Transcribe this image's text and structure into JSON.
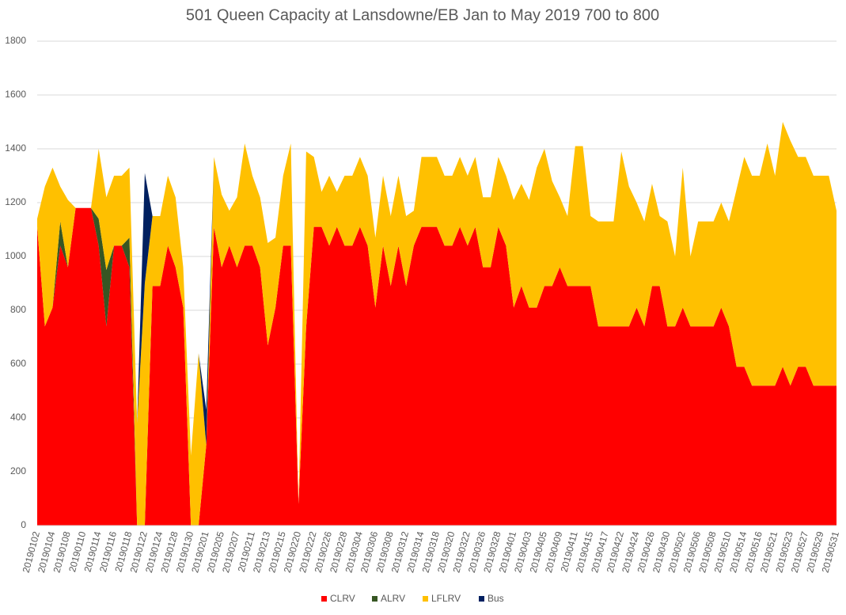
{
  "chart_data": {
    "type": "stacked_area",
    "title": "501 Queen Capacity at Lansdowne/EB Jan to May 2019 700 to 800",
    "categories": [
      "20190102",
      null,
      "20190104",
      null,
      "20190108",
      null,
      "20190110",
      null,
      "20190114",
      null,
      "20190116",
      null,
      "20190118",
      null,
      "20190122",
      null,
      "20190124",
      null,
      "20190128",
      null,
      "20190130",
      null,
      "20190201",
      null,
      "20190205",
      null,
      "20190207",
      null,
      "20190211",
      null,
      "20190213",
      null,
      "20190215",
      null,
      "20190220",
      null,
      "20190222",
      null,
      "20190226",
      null,
      "20190228",
      null,
      "20190304",
      null,
      "20190306",
      null,
      "20190308",
      null,
      "20190312",
      null,
      "20190314",
      null,
      "20190318",
      null,
      "20190320",
      null,
      "20190322",
      null,
      "20190326",
      null,
      "20190328",
      null,
      "20190401",
      null,
      "20190403",
      null,
      "20190405",
      null,
      "20190409",
      null,
      "20190411",
      null,
      "20190415",
      null,
      "20190417",
      null,
      "20190422",
      null,
      "20190424",
      null,
      "20190426",
      null,
      "20190430",
      null,
      "20190502",
      null,
      "20190506",
      null,
      "20190508",
      null,
      "20190510",
      null,
      "20190514",
      null,
      "20190516",
      null,
      "20190521",
      null,
      "20190523",
      null,
      "20190527",
      null,
      "20190529",
      null,
      "20190531"
    ],
    "series": [
      {
        "name": "CLRV",
        "color": "#ff0000",
        "values": [
          1110,
          740,
          810,
          1040,
          960,
          1180,
          1180,
          1180,
          1040,
          740,
          1040,
          1040,
          960,
          0,
          0,
          890,
          890,
          1040,
          960,
          810,
          0,
          0,
          300,
          1110,
          960,
          1040,
          960,
          1040,
          1040,
          960,
          670,
          810,
          1040,
          1040,
          80,
          740,
          1110,
          1110,
          1040,
          1110,
          1040,
          1040,
          1110,
          1040,
          810,
          1040,
          890,
          1040,
          890,
          1040,
          1110,
          1110,
          1110,
          1040,
          1040,
          1110,
          1040,
          1110,
          960,
          960,
          1110,
          1040,
          810,
          890,
          810,
          810,
          890,
          890,
          960,
          890,
          890,
          890,
          890,
          740,
          740,
          740,
          740,
          740,
          810,
          740,
          890,
          890,
          740,
          740,
          810,
          740,
          740,
          740,
          740,
          810,
          740,
          590,
          590,
          520,
          520,
          520,
          520,
          590,
          520,
          590,
          590,
          520,
          520,
          520,
          520
        ]
      },
      {
        "name": "ALRV",
        "color": "#375623",
        "values": [
          0,
          0,
          0,
          90,
          0,
          0,
          0,
          0,
          100,
          210,
          0,
          0,
          110,
          0,
          0,
          0,
          0,
          0,
          0,
          0,
          0,
          0,
          0,
          0,
          0,
          0,
          0,
          0,
          0,
          0,
          0,
          0,
          0,
          0,
          0,
          0,
          0,
          0,
          0,
          0,
          0,
          0,
          0,
          0,
          0,
          0,
          0,
          0,
          0,
          0,
          0,
          0,
          0,
          0,
          0,
          0,
          0,
          0,
          0,
          0,
          0,
          0,
          0,
          0,
          0,
          0,
          0,
          0,
          0,
          0,
          0,
          0,
          0,
          0,
          0,
          0,
          0,
          0,
          0,
          0,
          0,
          0,
          0,
          0,
          0,
          0,
          0,
          0,
          0,
          0,
          0,
          0,
          0,
          0,
          0,
          0,
          0,
          0,
          0,
          0,
          0,
          0,
          0,
          0,
          0
        ]
      },
      {
        "name": "LFLRV",
        "color": "#ffc000",
        "values": [
          30,
          520,
          520,
          130,
          250,
          0,
          0,
          0,
          260,
          270,
          260,
          260,
          260,
          380,
          900,
          260,
          260,
          260,
          260,
          150,
          260,
          640,
          0,
          260,
          270,
          130,
          260,
          380,
          260,
          260,
          380,
          260,
          260,
          380,
          0,
          650,
          260,
          130,
          260,
          130,
          260,
          260,
          260,
          260,
          260,
          260,
          260,
          260,
          260,
          130,
          260,
          260,
          260,
          260,
          260,
          260,
          260,
          260,
          260,
          260,
          260,
          260,
          400,
          380,
          400,
          520,
          510,
          390,
          260,
          260,
          520,
          520,
          260,
          390,
          390,
          390,
          650,
          520,
          390,
          390,
          380,
          260,
          390,
          260,
          520,
          260,
          390,
          390,
          390,
          390,
          390,
          660,
          780,
          780,
          780,
          900,
          780,
          910,
          910,
          780,
          780,
          780,
          780,
          780,
          650
        ]
      },
      {
        "name": "Bus",
        "color": "#002060",
        "values": [
          0,
          0,
          0,
          0,
          0,
          0,
          0,
          0,
          0,
          0,
          0,
          0,
          0,
          0,
          410,
          0,
          0,
          0,
          0,
          0,
          0,
          0,
          130,
          0,
          0,
          0,
          0,
          0,
          0,
          0,
          0,
          0,
          0,
          0,
          0,
          0,
          0,
          0,
          0,
          0,
          0,
          0,
          0,
          0,
          0,
          0,
          0,
          0,
          0,
          0,
          0,
          0,
          0,
          0,
          0,
          0,
          0,
          0,
          0,
          0,
          0,
          0,
          0,
          0,
          0,
          0,
          0,
          0,
          0,
          0,
          0,
          0,
          0,
          0,
          0,
          0,
          0,
          0,
          0,
          0,
          0,
          0,
          0,
          0,
          0,
          0,
          0,
          0,
          0,
          0,
          0,
          0,
          0,
          0,
          0,
          0,
          0,
          0,
          0,
          0,
          0,
          0,
          0,
          0,
          0
        ]
      }
    ],
    "ylim": [
      0,
      1800
    ],
    "yticks": [
      0,
      200,
      400,
      600,
      800,
      1000,
      1200,
      1400,
      1600,
      1800
    ],
    "grid": true,
    "legend": "bottom"
  }
}
